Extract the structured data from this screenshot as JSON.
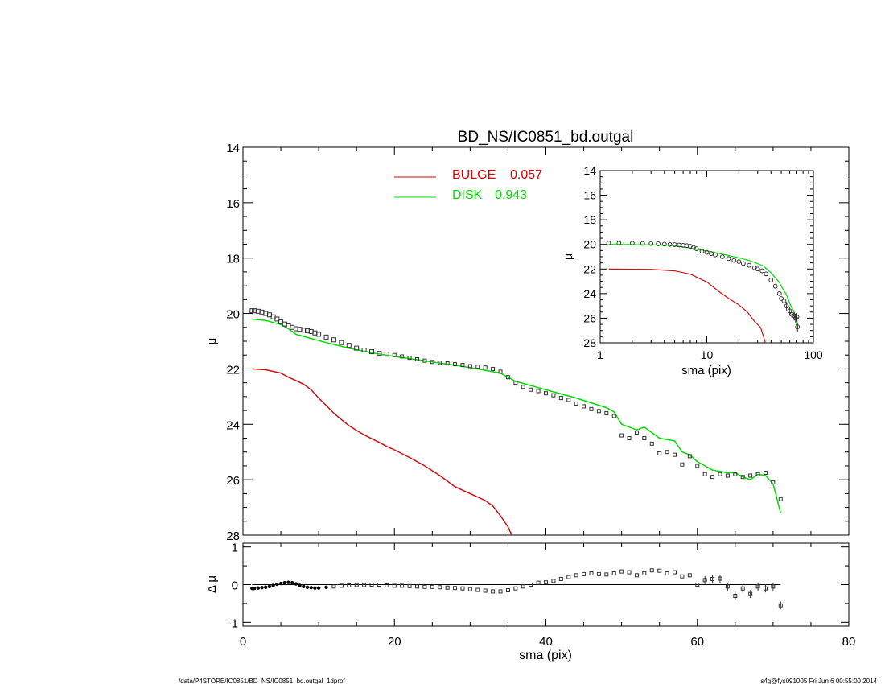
{
  "chart_data": [
    {
      "id": "main",
      "type": "line",
      "title": "BD_NS/IC0851_bd.outgal",
      "ylabel": "μ",
      "xlim": [
        0,
        80
      ],
      "ylim": [
        28,
        14
      ],
      "y_inverted": true,
      "yticks": [
        14,
        16,
        18,
        20,
        22,
        24,
        26,
        28
      ],
      "legend": [
        {
          "label": "BULGE",
          "value": "0.057",
          "color": "#dd0000"
        },
        {
          "label": "DISK",
          "value": "0.943",
          "color": "#00dd00"
        }
      ],
      "series": [
        {
          "name": "BULGE",
          "color": "#cc1111",
          "style": "line",
          "x": [
            1.2,
            3,
            5,
            6,
            7,
            8,
            9,
            10,
            11,
            12,
            13,
            14,
            15,
            16,
            17,
            18,
            19,
            20,
            22,
            24,
            26,
            28,
            30,
            32,
            33,
            34,
            35,
            35.5
          ],
          "y": [
            22.0,
            22.03,
            22.15,
            22.3,
            22.42,
            22.55,
            22.75,
            23.05,
            23.32,
            23.6,
            23.83,
            24.05,
            24.22,
            24.38,
            24.52,
            24.65,
            24.8,
            24.92,
            25.2,
            25.5,
            25.85,
            26.25,
            26.5,
            26.75,
            26.95,
            27.3,
            27.7,
            28.0
          ]
        },
        {
          "name": "DISK",
          "color": "#00dd00",
          "style": "line",
          "x": [
            1.2,
            3,
            5,
            6,
            7,
            9,
            11,
            14,
            17,
            20,
            25,
            30,
            34,
            36,
            40,
            44,
            48,
            49,
            50,
            51,
            52,
            53,
            54,
            55,
            56,
            57,
            58,
            59,
            60,
            61,
            62,
            63,
            64,
            65,
            66,
            67,
            68,
            69,
            70,
            71
          ],
          "y": [
            20.2,
            20.25,
            20.4,
            20.55,
            20.75,
            20.9,
            21.05,
            21.25,
            21.42,
            21.55,
            21.75,
            21.95,
            22.15,
            22.45,
            22.75,
            23.05,
            23.4,
            23.55,
            24.0,
            24.1,
            24.2,
            24.1,
            24.3,
            24.5,
            24.55,
            24.6,
            25.0,
            25.1,
            25.35,
            25.5,
            25.65,
            25.7,
            25.75,
            25.75,
            25.9,
            26.0,
            25.8,
            25.85,
            26.15,
            27.2
          ]
        },
        {
          "name": "data",
          "color": "#333333",
          "style": "markers",
          "x": [
            1.2,
            1.5,
            2,
            2.5,
            3,
            3.5,
            4,
            4.5,
            5,
            5.5,
            6,
            6.5,
            7,
            7.5,
            8,
            8.5,
            9,
            9.5,
            10,
            11,
            12,
            13,
            14,
            15,
            16,
            17,
            18,
            19,
            20,
            21,
            22,
            23,
            24,
            25,
            26,
            27,
            28,
            29,
            30,
            31,
            32,
            33,
            34,
            35,
            36,
            37,
            38,
            39,
            40,
            41,
            42,
            43,
            44,
            45,
            46,
            47,
            48,
            49,
            50,
            51,
            52,
            53,
            54,
            55,
            56,
            57,
            58,
            59,
            60,
            61,
            62,
            63,
            64,
            65,
            66,
            67,
            68,
            69,
            70,
            71
          ],
          "y": [
            19.9,
            19.9,
            19.92,
            19.95,
            20.0,
            20.05,
            20.12,
            20.2,
            20.3,
            20.38,
            20.45,
            20.5,
            20.55,
            20.57,
            20.6,
            20.62,
            20.65,
            20.7,
            20.75,
            20.85,
            20.95,
            21.05,
            21.15,
            21.25,
            21.32,
            21.38,
            21.44,
            21.47,
            21.5,
            21.55,
            21.6,
            21.65,
            21.7,
            21.75,
            21.78,
            21.8,
            21.83,
            21.86,
            21.9,
            21.92,
            21.95,
            22.0,
            22.1,
            22.3,
            22.5,
            22.65,
            22.75,
            22.8,
            22.88,
            22.95,
            23.05,
            23.12,
            23.25,
            23.35,
            23.45,
            23.52,
            23.6,
            23.7,
            24.4,
            24.5,
            24.3,
            24.5,
            24.7,
            25.05,
            25.0,
            25.1,
            25.45,
            25.15,
            25.5,
            25.8,
            25.9,
            25.8,
            25.85,
            25.8,
            25.9,
            25.85,
            25.8,
            25.75,
            26.1,
            26.7
          ]
        }
      ]
    },
    {
      "id": "residual",
      "type": "scatter",
      "xlabel": "sma (pix)",
      "ylabel": "Δ μ",
      "xlim": [
        0,
        80
      ],
      "ylim": [
        -1.1,
        1.1
      ],
      "xticks": [
        0,
        20,
        40,
        60,
        80
      ],
      "yticks": [
        -1,
        0,
        1
      ],
      "zero_line": true,
      "series": [
        {
          "name": "residual",
          "color": "#333333",
          "x": [
            1.2,
            1.5,
            2,
            2.5,
            3,
            3.5,
            4,
            4.5,
            5,
            5.5,
            6,
            6.5,
            7,
            7.5,
            8,
            8.5,
            9,
            9.5,
            10,
            11,
            12,
            13,
            14,
            15,
            16,
            17,
            18,
            19,
            20,
            21,
            22,
            23,
            24,
            25,
            26,
            27,
            28,
            29,
            30,
            31,
            32,
            33,
            34,
            35,
            36,
            37,
            38,
            39,
            40,
            41,
            42,
            43,
            44,
            45,
            46,
            47,
            48,
            49,
            50,
            51,
            52,
            53,
            54,
            55,
            56,
            57,
            58,
            59,
            60,
            61,
            62,
            63,
            64,
            65,
            66,
            67,
            68,
            69,
            70,
            71
          ],
          "y": [
            -0.1,
            -0.1,
            -0.09,
            -0.08,
            -0.07,
            -0.05,
            -0.02,
            0.01,
            0.03,
            0.05,
            0.06,
            0.05,
            0.02,
            -0.02,
            -0.05,
            -0.07,
            -0.08,
            -0.09,
            -0.09,
            -0.07,
            -0.05,
            -0.03,
            -0.02,
            -0.01,
            -0.01,
            0.0,
            0.0,
            -0.02,
            -0.03,
            -0.03,
            -0.04,
            -0.05,
            -0.06,
            -0.06,
            -0.07,
            -0.08,
            -0.09,
            -0.1,
            -0.12,
            -0.14,
            -0.16,
            -0.18,
            -0.18,
            -0.15,
            -0.1,
            -0.05,
            0.0,
            0.05,
            0.06,
            0.1,
            0.15,
            0.2,
            0.25,
            0.28,
            0.3,
            0.28,
            0.27,
            0.3,
            0.35,
            0.33,
            0.25,
            0.3,
            0.38,
            0.37,
            0.3,
            0.33,
            0.22,
            0.25,
            0.0,
            0.12,
            0.15,
            0.16,
            -0.05,
            -0.3,
            -0.1,
            -0.25,
            -0.05,
            -0.1,
            -0.05,
            -0.55
          ]
        }
      ]
    },
    {
      "id": "inset",
      "type": "line",
      "xlabel": "sma (pix)",
      "ylabel": "μ",
      "x_scale": "log",
      "xlim": [
        1,
        100
      ],
      "ylim": [
        28,
        14
      ],
      "y_inverted": true,
      "xtick_labels": [
        "1",
        "10",
        "100"
      ],
      "yticks": [
        14,
        16,
        18,
        20,
        22,
        24,
        26,
        28
      ],
      "series": [
        {
          "name": "BULGE",
          "color": "#cc1111",
          "style": "line",
          "x": [
            1.2,
            3,
            5,
            7,
            10,
            13,
            16,
            20,
            24,
            28,
            32,
            35.5
          ],
          "y": [
            22.0,
            22.03,
            22.15,
            22.42,
            23.05,
            23.83,
            24.38,
            24.92,
            25.5,
            26.25,
            26.75,
            28.0
          ]
        },
        {
          "name": "DISK",
          "color": "#00dd00",
          "style": "line",
          "x": [
            1.2,
            3,
            5,
            7,
            11,
            17,
            25,
            34,
            40,
            48,
            50,
            56,
            60,
            65,
            70,
            71
          ],
          "y": [
            20.0,
            20.03,
            20.1,
            20.3,
            20.6,
            20.95,
            21.3,
            21.75,
            22.3,
            23.1,
            23.4,
            24.1,
            24.8,
            25.4,
            26.0,
            26.8
          ]
        },
        {
          "name": "data",
          "color": "#333333",
          "style": "markers",
          "x": [
            1.2,
            1.5,
            2,
            2.5,
            3,
            3.5,
            4,
            4.5,
            5,
            5.5,
            6,
            6.5,
            7,
            7.5,
            8,
            9,
            10,
            11,
            12,
            14,
            16,
            18,
            20,
            22,
            25,
            28,
            30,
            33,
            36,
            40,
            44,
            48,
            50,
            53,
            56,
            60,
            63,
            66,
            68,
            70,
            71
          ],
          "y": [
            19.9,
            19.9,
            19.9,
            19.92,
            19.93,
            19.95,
            19.98,
            20.0,
            20.02,
            20.05,
            20.08,
            20.1,
            20.15,
            20.25,
            20.35,
            20.55,
            20.65,
            20.75,
            20.85,
            21.0,
            21.15,
            21.3,
            21.4,
            21.55,
            21.7,
            21.9,
            22.0,
            22.15,
            22.4,
            22.9,
            23.4,
            24.0,
            24.4,
            24.6,
            25.0,
            25.4,
            25.7,
            25.8,
            26.0,
            25.9,
            26.7
          ]
        }
      ]
    }
  ],
  "footer": {
    "left": "/data/P4STORE/IC0851/BD_NS/IC0851_bd.outgal_1dprof",
    "right": "s4g@fys091005  Fri Jun  6 00:55:00 2014"
  }
}
